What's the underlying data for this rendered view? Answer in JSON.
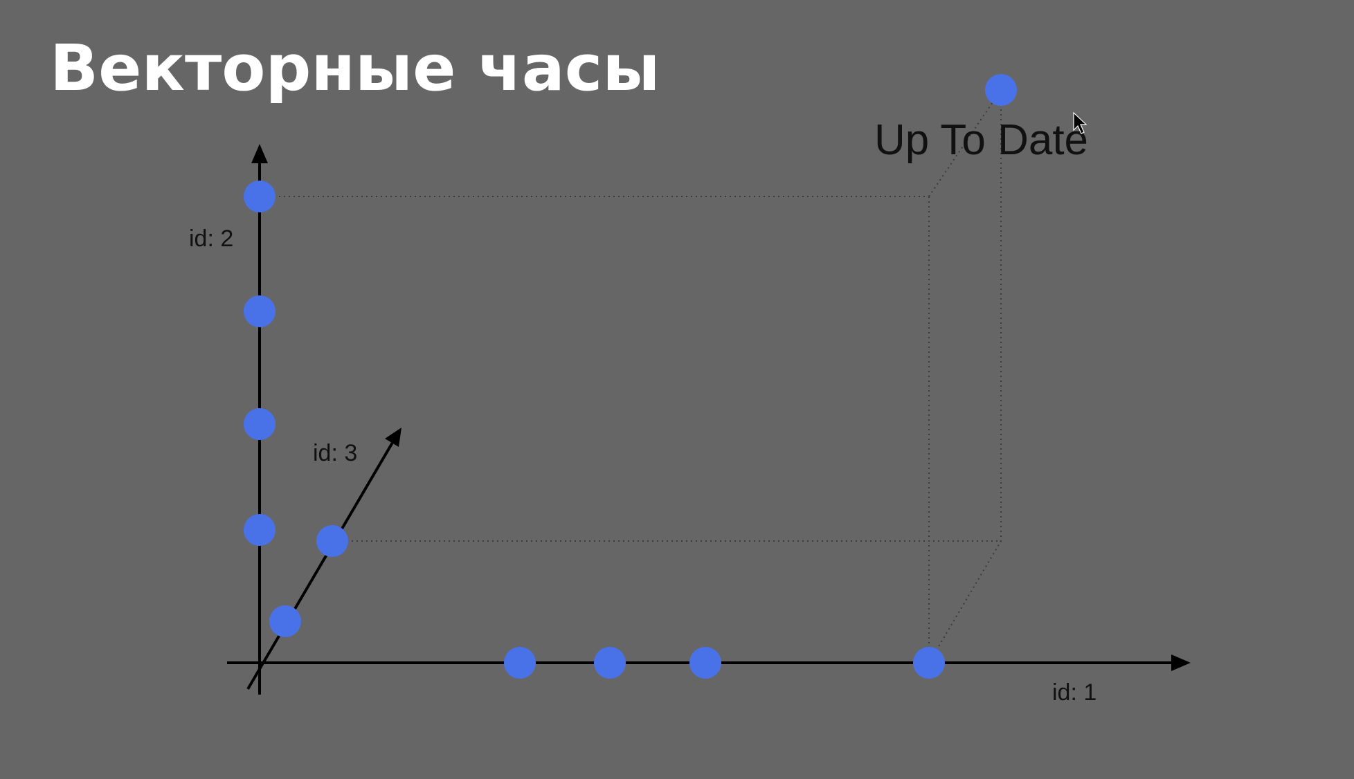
{
  "title": "Векторные часы",
  "labels": {
    "axis_x": "id: 1",
    "axis_y": "id: 2",
    "axis_z": "id: 3",
    "up_to_date": "Up To Date"
  },
  "colors": {
    "background": "#666666",
    "dot": "#4a72e8",
    "axis": "#000000",
    "title": "#ffffff"
  },
  "icons": [
    "mouse-cursor-icon"
  ]
}
